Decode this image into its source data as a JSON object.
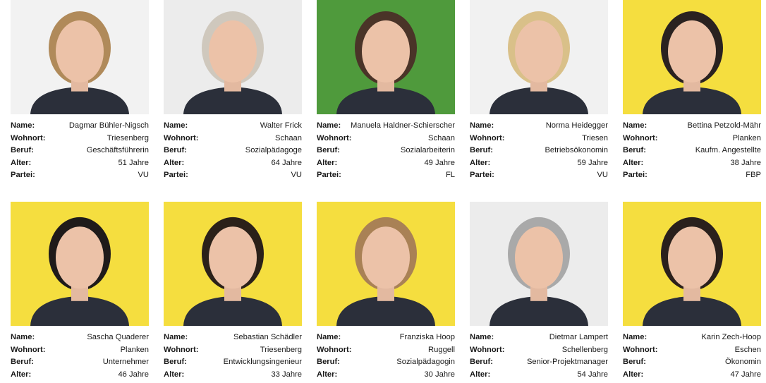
{
  "labels": {
    "name": "Name:",
    "residence": "Wohnort:",
    "job": "Beruf:",
    "age": "Alter:",
    "party": "Partei:"
  },
  "people": [
    {
      "name": "Dagmar Bühler-Nigsch",
      "residence": "Triesenberg",
      "job": "Geschäftsführerin",
      "age": "51 Jahre",
      "party": "VU",
      "bg": "#f2f2f2",
      "hair": "#b08a5a"
    },
    {
      "name": "Walter Frick",
      "residence": "Schaan",
      "job": "Sozialpädagoge",
      "age": "64 Jahre",
      "party": "VU",
      "bg": "#ececec",
      "hair": "#cfc8bd"
    },
    {
      "name": "Manuela Haldner-Schierscher",
      "residence": "Schaan",
      "job": "Sozialarbeiterin",
      "age": "49 Jahre",
      "party": "FL",
      "bg": "#4f9a3c",
      "hair": "#4a3428"
    },
    {
      "name": "Norma Heidegger",
      "residence": "Triesen",
      "job": "Betriebsökonomin",
      "age": "59 Jahre",
      "party": "VU",
      "bg": "#f1f1f1",
      "hair": "#d9c089"
    },
    {
      "name": "Bettina Petzold-Mähr",
      "residence": "Planken",
      "job": "Kaufm. Angestellte",
      "age": "38 Jahre",
      "party": "FBP",
      "bg": "#f5de3f",
      "hair": "#2a2220"
    },
    {
      "name": "Sascha Quaderer",
      "residence": "Planken",
      "job": "Unternehmer",
      "age": "46 Jahre",
      "bg": "#f5de3f",
      "hair": "#1f1b1a"
    },
    {
      "name": "Sebastian Schädler",
      "residence": "Triesenberg",
      "job": "Entwicklungsingenieur",
      "age": "33 Jahre",
      "bg": "#f5de3f",
      "hair": "#2b2119"
    },
    {
      "name": "Franziska Hoop",
      "residence": "Ruggell",
      "job": "Sozialpädagogin",
      "age": "30 Jahre",
      "bg": "#f5de3f",
      "hair": "#a98155"
    },
    {
      "name": "Dietmar Lampert",
      "residence": "Schellenberg",
      "job": "Senior-Projektmanager",
      "age": "54 Jahre",
      "bg": "#ececec",
      "hair": "#a9a9a9"
    },
    {
      "name": "Karin Zech-Hoop",
      "residence": "Eschen",
      "job": "Ökonomin",
      "age": "47 Jahre",
      "bg": "#f5de3f",
      "hair": "#2a201c"
    }
  ]
}
